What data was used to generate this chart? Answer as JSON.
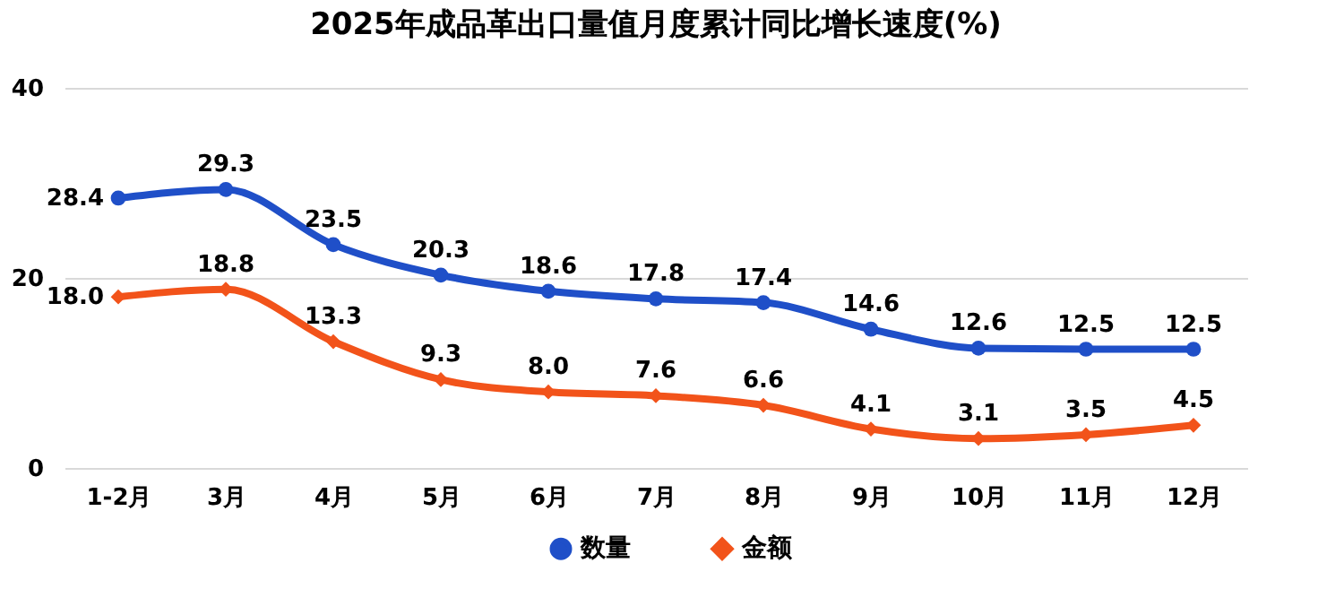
{
  "chart_data": {
    "type": "line",
    "title": "2025年成品革出口量值月度累计同比增长速度(%)",
    "categories": [
      "1-2月",
      "3月",
      "4月",
      "5月",
      "6月",
      "7月",
      "8月",
      "9月",
      "10月",
      "11月",
      "12月"
    ],
    "series": [
      {
        "name": "数量",
        "color": "#1f4fc8",
        "marker": "circle",
        "values": [
          28.4,
          29.3,
          23.5,
          20.3,
          18.6,
          17.8,
          17.4,
          14.6,
          12.6,
          12.5,
          12.5
        ],
        "value_labels": [
          "28.4",
          "29.3",
          "23.5",
          "20.3",
          "18.6",
          "17.8",
          "17.4",
          "14.6",
          "12.6",
          "12.5",
          "12.5"
        ]
      },
      {
        "name": "金额",
        "color": "#f2531a",
        "marker": "diamond",
        "values": [
          18.0,
          18.8,
          13.3,
          9.3,
          8.0,
          7.6,
          6.6,
          4.1,
          3.1,
          3.5,
          4.5
        ],
        "value_labels": [
          "18.0",
          "18.8",
          "13.3",
          "9.3",
          "8.0",
          "7.6",
          "6.6",
          "4.1",
          "3.1",
          "3.5",
          "4.5"
        ]
      }
    ],
    "ylim": [
      0,
      40
    ],
    "yticks": [
      0,
      20,
      40
    ],
    "grid": "y",
    "legend": "bottom",
    "line_style": "solid"
  }
}
